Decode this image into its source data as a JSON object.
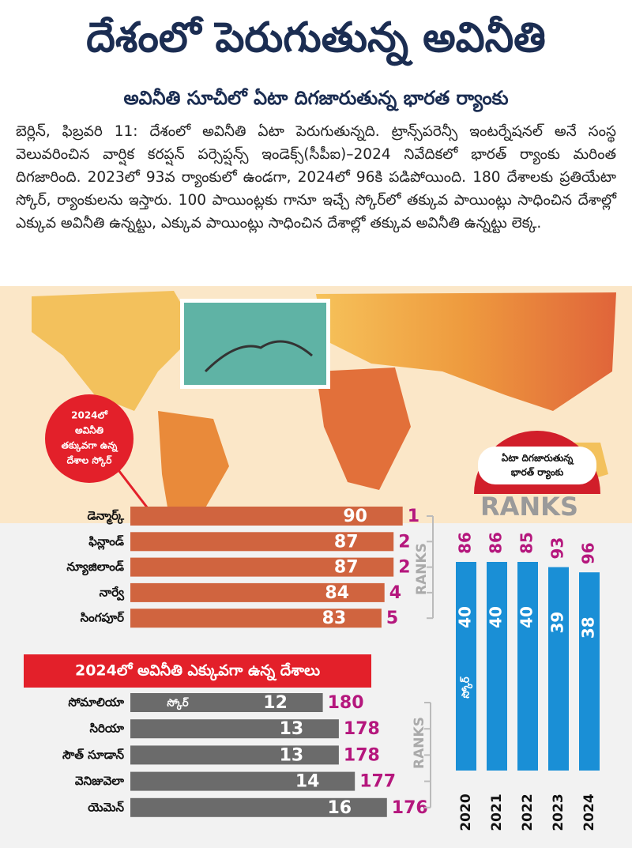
{
  "header": {
    "title": "దేశంలో పెరుగుతున్న అవినీతి",
    "subtitle": "అవినీతి సూచీలో ఏటా దిగజారుతున్న భారత ర్యాంకు"
  },
  "article": {
    "text": "బెర్లిన్, ఫిబ్రవరి 11: దేశంలో అవినీతి ఏటా పెరుగుతున్నది. ట్రాన్స్‌పరెన్సీ ఇంటర్నేషనల్ అనే సంస్థ వెలువరించిన వార్షిక కరప్షన్ పర్సెప్షన్స్ ఇండెక్స్(సీపీఐ)–2024 నివేదికలో భారత్ ర్యాంకు మరింత దిగజారింది. 2023లో 93వ ర్యాంకులో ఉండగా, 2024లో 96కి పడిపోయింది. 180 దేశాలకు ప్రతియేటా స్కోర్, ర్యాంకులను ఇస్తారు. 100 పాయింట్లకు గానూ ఇచ్చే స్కోర్‌లో తక్కువ పాయింట్లు సాధించిన దేశాల్లో ఎక్కువ అవినీతి ఉన్నట్టు, ఎక్కువ పాయింట్లు సాధించిన దేశాల్లో తక్కువ అవినీతి ఉన్నట్టు లెక్క."
  },
  "chart_data": [
    {
      "type": "hbar",
      "annotation": [
        "2024లో",
        "అవినీతి",
        "తక్కువగా ఉన్న",
        "దేశాల స్కోర్"
      ],
      "categories": [
        "డెన్మార్క్",
        "ఫిన్లాండ్",
        "న్యూజిలాండ్",
        "నార్వే",
        "సింగపూర్"
      ],
      "values": [
        90,
        87,
        87,
        84,
        83
      ],
      "ranks": [
        1,
        2,
        2,
        4,
        5
      ],
      "rank_label": "RANKS",
      "color": "#d0643f",
      "rank_color": "#b5177d"
    },
    {
      "type": "hbar",
      "title": "2024లో అవినీతి ఎక్కువగా ఉన్న దేశాలు",
      "value_name": "స్కోర్",
      "categories": [
        "సోమాలియా",
        "సిరియా",
        "సౌత్ సూడాన్",
        "వెనిజువెలా",
        "యెమెన్"
      ],
      "values": [
        12,
        13,
        13,
        14,
        16
      ],
      "ranks": [
        180,
        178,
        178,
        177,
        176
      ],
      "rank_label": "RANKS",
      "color": "#6b6b6b",
      "rank_color": "#b5177d"
    },
    {
      "type": "vbar",
      "title": [
        "ఏటా దిగజారుతున్న",
        "భారత్ ర్యాంకు"
      ],
      "rank_label": "RANKS",
      "value_name": "స్కోర్",
      "categories": [
        "2020",
        "2021",
        "2022",
        "2023",
        "2024"
      ],
      "values": [
        40,
        40,
        40,
        39,
        38
      ],
      "ranks": [
        86,
        86,
        85,
        93,
        96
      ],
      "color": "#1a8fd6",
      "rank_color": "#b5177d"
    }
  ]
}
